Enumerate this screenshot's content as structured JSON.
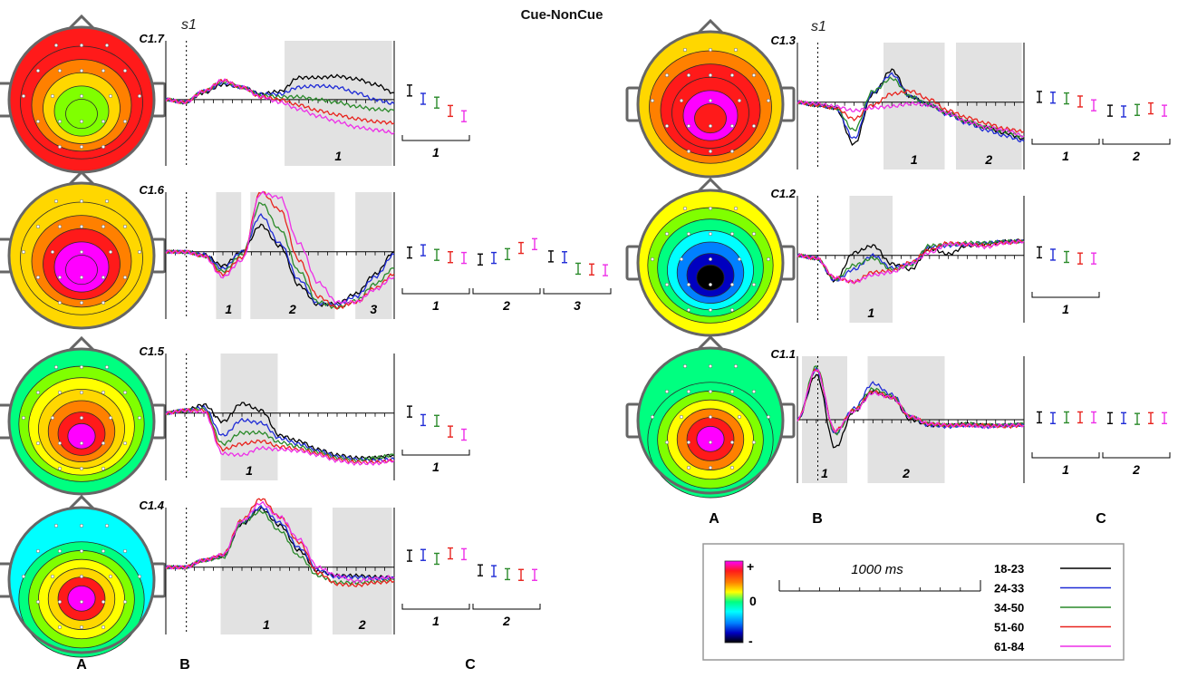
{
  "title": "Cue-NonCue",
  "time_marker": "s1",
  "column_letters": [
    "A",
    "B",
    "C"
  ],
  "legend": {
    "color_plus": "+",
    "color_zero": "0",
    "color_minus": "-",
    "scale_label": "1000 ms",
    "groups": [
      {
        "label": "18-23",
        "color": "#000000"
      },
      {
        "label": "24-33",
        "color": "#1f2bd6"
      },
      {
        "label": "34-50",
        "color": "#2a8a2a"
      },
      {
        "label": "51-60",
        "color": "#e8231e"
      },
      {
        "label": "61-84",
        "color": "#ee2ee8"
      }
    ]
  },
  "colormap": [
    "#ff00ff",
    "#ff1a1a",
    "#ff8000",
    "#ffd700",
    "#ffff00",
    "#80ff00",
    "#00ff80",
    "#00ffff",
    "#0080ff",
    "#0000c0",
    "#000000"
  ],
  "chart_data": [
    {
      "component": "C1.7",
      "type": "line",
      "topo": {
        "bands": [
          1,
          1,
          2,
          3,
          5,
          5
        ],
        "sensor_rows": [
          [
            30,
            0,
            30
          ],
          [
            40,
            10,
            40
          ],
          [
            40,
            40,
            30
          ],
          [
            30,
            40,
            40
          ]
        ]
      },
      "windows": [
        {
          "label": "1",
          "start": 0.52,
          "end": 0.99
        }
      ],
      "series": [
        {
          "name": "18-23",
          "values": [
            0,
            -0.1,
            0.25,
            0.55,
            0.45,
            0.2,
            0.3,
            0.8,
            0.8,
            0.85,
            0.75,
            0.55,
            0.25
          ]
        },
        {
          "name": "24-33",
          "values": [
            0,
            -0.1,
            0.3,
            0.6,
            0.45,
            0.2,
            0.2,
            0.45,
            0.5,
            0.45,
            0.25,
            0,
            -0.15
          ]
        },
        {
          "name": "34-50",
          "values": [
            0,
            -0.1,
            0.3,
            0.65,
            0.45,
            0.15,
            0.1,
            0.1,
            0,
            -0.1,
            -0.25,
            -0.35,
            -0.4
          ]
        },
        {
          "name": "51-60",
          "values": [
            0,
            -0.1,
            0.3,
            0.7,
            0.45,
            0.1,
            0,
            -0.2,
            -0.4,
            -0.55,
            -0.7,
            -0.8,
            -0.85
          ]
        },
        {
          "name": "61-84",
          "values": [
            0,
            -0.1,
            0.3,
            0.7,
            0.45,
            0.1,
            -0.1,
            -0.35,
            -0.6,
            -0.8,
            -1,
            -1.1,
            -1.2
          ]
        }
      ],
      "bars": [
        {
          "label": "1",
          "values": [
            0.6,
            0.05,
            -0.2,
            -0.75,
            -1.1
          ]
        }
      ]
    },
    {
      "component": "C1.6",
      "type": "line",
      "topo": {
        "bands": [
          3,
          3,
          2,
          1,
          0,
          0
        ],
        "sensor_rows": [
          [
            30,
            0,
            30
          ],
          [
            40,
            10,
            40
          ],
          [
            40,
            40,
            30
          ],
          [
            30,
            40,
            40
          ]
        ]
      },
      "windows": [
        {
          "label": "1",
          "start": 0.22,
          "end": 0.33
        },
        {
          "label": "2",
          "start": 0.37,
          "end": 0.74
        },
        {
          "label": "3",
          "start": 0.83,
          "end": 0.99
        }
      ],
      "series": [
        {
          "name": "18-23",
          "values": [
            0,
            0,
            -0.1,
            -0.5,
            0,
            0.95,
            0.2,
            -1.2,
            -1.9,
            -1.85,
            -1.5,
            -0.8,
            0
          ]
        },
        {
          "name": "24-33",
          "values": [
            0,
            0,
            -0.1,
            -0.6,
            0,
            1.3,
            0.3,
            -1,
            -1.85,
            -1.9,
            -1.6,
            -0.9,
            -0.1
          ]
        },
        {
          "name": "34-50",
          "values": [
            0,
            0,
            -0.15,
            -0.7,
            -0.1,
            1.75,
            0.8,
            -0.7,
            -1.8,
            -2,
            -1.75,
            -1.15,
            -0.6
          ]
        },
        {
          "name": "51-60",
          "values": [
            0,
            0,
            -0.15,
            -0.8,
            -0.2,
            2.15,
            1.5,
            -0.3,
            -1.6,
            -2,
            -1.8,
            -1.3,
            -0.8
          ]
        },
        {
          "name": "61-84",
          "values": [
            0,
            0,
            -0.15,
            -0.9,
            -0.3,
            2.1,
            1.95,
            0.3,
            -1.1,
            -1.8,
            -1.8,
            -1.35,
            -0.9
          ]
        }
      ],
      "bars": [
        {
          "label": "1",
          "values": [
            -0.05,
            0.1,
            -0.2,
            -0.35,
            -0.4
          ]
        },
        {
          "label": "2",
          "values": [
            -0.5,
            -0.4,
            -0.15,
            0.25,
            0.5
          ]
        },
        {
          "label": "3",
          "values": [
            -0.3,
            -0.35,
            -1.1,
            -1.15,
            -1.2
          ]
        }
      ]
    },
    {
      "component": "C1.5",
      "type": "line",
      "topo": {
        "bands": [
          6,
          5,
          4,
          3,
          2,
          1,
          0
        ],
        "sensor_rows": [
          [
            30,
            0,
            30
          ],
          [
            40,
            10,
            40
          ],
          [
            40,
            40,
            30
          ],
          [
            30,
            40,
            40
          ]
        ]
      },
      "windows": [
        {
          "label": "1",
          "start": 0.24,
          "end": 0.49
        }
      ],
      "series": [
        {
          "name": "18-23",
          "values": [
            0,
            0.1,
            0.3,
            -0.3,
            0.35,
            0.1,
            -0.8,
            -1,
            -1.3,
            -1.5,
            -1.6,
            -1.6,
            -1.5
          ]
        },
        {
          "name": "24-33",
          "values": [
            0,
            0.1,
            0.2,
            -0.8,
            -0.25,
            -0.35,
            -0.9,
            -1.1,
            -1.35,
            -1.55,
            -1.65,
            -1.7,
            -1.65
          ]
        },
        {
          "name": "34-50",
          "values": [
            0,
            0.1,
            0.15,
            -1.1,
            -0.7,
            -0.7,
            -1.05,
            -1.2,
            -1.4,
            -1.6,
            -1.7,
            -1.6,
            -1.5
          ]
        },
        {
          "name": "51-60",
          "values": [
            0,
            0.1,
            0.1,
            -1.3,
            -1.1,
            -1,
            -1.2,
            -1.3,
            -1.45,
            -1.65,
            -1.75,
            -1.75,
            -1.7
          ]
        },
        {
          "name": "61-84",
          "values": [
            0,
            0.1,
            0.05,
            -1.45,
            -1.5,
            -1.25,
            -1.3,
            -1.35,
            -1.5,
            -1.7,
            -1.8,
            -1.8,
            -1.7
          ]
        }
      ],
      "bars": [
        {
          "label": "1",
          "values": [
            0.1,
            -0.45,
            -0.5,
            -1.2,
            -1.4
          ]
        }
      ]
    },
    {
      "component": "C1.4",
      "type": "line",
      "topo": {
        "bands": [
          7,
          6,
          5,
          4,
          3,
          1,
          0
        ],
        "sensor_rows": [
          [
            30,
            0,
            30
          ],
          [
            40,
            10,
            40
          ],
          [
            40,
            40,
            30
          ],
          [
            30,
            40,
            40
          ]
        ]
      },
      "windows": [
        {
          "label": "1",
          "start": 0.24,
          "end": 0.64
        },
        {
          "label": "2",
          "start": 0.73,
          "end": 0.99
        }
      ],
      "series": [
        {
          "name": "18-23",
          "values": [
            0,
            0,
            0.25,
            0.4,
            1.55,
            2.1,
            1.5,
            0.6,
            -0.15,
            -0.3,
            -0.3,
            -0.35,
            -0.35
          ]
        },
        {
          "name": "24-33",
          "values": [
            0,
            0,
            0.25,
            0.4,
            1.6,
            2.15,
            1.6,
            0.7,
            -0.1,
            -0.35,
            -0.35,
            -0.4,
            -0.4
          ]
        },
        {
          "name": "34-50",
          "values": [
            0,
            0,
            0.25,
            0.35,
            1.6,
            2,
            1.3,
            0.4,
            -0.3,
            -0.55,
            -0.55,
            -0.5,
            -0.45
          ]
        },
        {
          "name": "51-60",
          "values": [
            0,
            0,
            0.25,
            0.45,
            1.7,
            2.45,
            1.8,
            0.9,
            -0.2,
            -0.6,
            -0.65,
            -0.55,
            -0.5
          ]
        },
        {
          "name": "61-84",
          "values": [
            0,
            0,
            0.25,
            0.45,
            1.65,
            2.3,
            1.8,
            1,
            0,
            -0.3,
            -0.5,
            -0.4,
            -0.35
          ]
        }
      ],
      "bars": [
        {
          "label": "1",
          "values": [
            0.75,
            0.8,
            0.55,
            0.9,
            0.85
          ]
        },
        {
          "label": "2",
          "values": [
            -0.2,
            -0.25,
            -0.45,
            -0.5,
            -0.5
          ]
        }
      ]
    },
    {
      "component": "C1.3",
      "type": "line",
      "topo": {
        "bands": [
          3,
          2,
          1,
          1,
          0,
          1
        ],
        "sensor_rows": [
          [
            30,
            0,
            30
          ],
          [
            40,
            10,
            40
          ],
          [
            40,
            40,
            30
          ],
          [
            30,
            40,
            40
          ]
        ]
      },
      "windows": [
        {
          "label": "1",
          "start": 0.38,
          "end": 0.65
        },
        {
          "label": "2",
          "start": 0.7,
          "end": 0.99
        }
      ],
      "series": [
        {
          "name": "18-23",
          "values": [
            0,
            -0.1,
            -0.2,
            -1.5,
            0.3,
            1.15,
            0.2,
            -0.1,
            -0.4,
            -0.7,
            -0.9,
            -1.1,
            -1.3
          ]
        },
        {
          "name": "24-33",
          "values": [
            0,
            -0.1,
            -0.2,
            -1.3,
            0.35,
            1,
            0.2,
            -0.1,
            -0.45,
            -0.75,
            -1,
            -1.2,
            -1.4
          ]
        },
        {
          "name": "34-50",
          "values": [
            0,
            -0.1,
            -0.2,
            -1,
            0.4,
            0.85,
            0.2,
            -0.1,
            -0.4,
            -0.7,
            -0.9,
            -1.05,
            -1.25
          ]
        },
        {
          "name": "51-60",
          "values": [
            0,
            -0.1,
            -0.2,
            -0.6,
            -0.1,
            0.3,
            0.4,
            0.1,
            -0.3,
            -0.55,
            -0.75,
            -0.95,
            -1.05
          ]
        },
        {
          "name": "61-84",
          "values": [
            0,
            -0.05,
            -0.15,
            -0.3,
            -0.2,
            -0.15,
            -0.05,
            -0.1,
            -0.4,
            -0.7,
            -0.9,
            -1,
            -1.2
          ]
        }
      ],
      "bars": [
        {
          "label": "1",
          "values": [
            0.35,
            0.3,
            0.25,
            0.05,
            -0.2
          ]
        },
        {
          "label": "2",
          "values": [
            -0.55,
            -0.6,
            -0.5,
            -0.4,
            -0.55
          ]
        }
      ]
    },
    {
      "component": "C1.2",
      "type": "line",
      "topo": {
        "bands": [
          4,
          5,
          6,
          7,
          8,
          9,
          10
        ],
        "sensor_rows": [
          [
            30,
            0,
            30
          ],
          [
            40,
            10,
            40
          ],
          [
            40,
            40,
            30
          ],
          [
            30,
            40,
            40
          ]
        ]
      },
      "windows": [
        {
          "label": "1",
          "start": 0.23,
          "end": 0.42
        }
      ],
      "series": [
        {
          "name": "18-23",
          "values": [
            0,
            -0.1,
            -0.9,
            0.1,
            0.35,
            -0.3,
            -0.5,
            0.25,
            0.05,
            0.35,
            0.4,
            0.5,
            0.55
          ]
        },
        {
          "name": "24-33",
          "values": [
            0,
            -0.1,
            -0.9,
            -0.5,
            0,
            -0.45,
            -0.3,
            0.3,
            0.35,
            0.4,
            0.45,
            0.5,
            0.5
          ]
        },
        {
          "name": "34-50",
          "values": [
            0,
            -0.1,
            -0.85,
            -0.35,
            -0.1,
            -0.5,
            -0.35,
            0.35,
            0.4,
            0.45,
            0.45,
            0.5,
            0.5
          ]
        },
        {
          "name": "51-60",
          "values": [
            0,
            -0.1,
            -0.8,
            -0.95,
            -0.6,
            -0.55,
            -0.25,
            0.2,
            0.45,
            0.4,
            0.35,
            0.45,
            0.5
          ]
        },
        {
          "name": "61-84",
          "values": [
            0,
            -0.1,
            -0.8,
            -0.95,
            -0.7,
            -0.6,
            -0.3,
            0.1,
            0.4,
            0.4,
            0.3,
            0.45,
            0.5
          ]
        }
      ],
      "bars": [
        {
          "label": "1",
          "values": [
            0.2,
            0.05,
            -0.1,
            -0.2,
            -0.2
          ]
        }
      ]
    },
    {
      "component": "C1.1",
      "type": "line",
      "topo": {
        "bands": [
          6,
          6,
          5,
          4,
          2,
          1,
          0
        ],
        "sensor_rows": [
          [
            30,
            0,
            30
          ],
          [
            40,
            10,
            40
          ],
          [
            40,
            40,
            30
          ],
          [
            30,
            40,
            40
          ]
        ]
      },
      "windows": [
        {
          "label": "1",
          "start": 0.02,
          "end": 0.22
        },
        {
          "label": "2",
          "start": 0.31,
          "end": 0.65
        }
      ],
      "series": [
        {
          "name": "18-23",
          "values": [
            0,
            1.6,
            -1,
            0.3,
            1,
            0.8,
            0,
            -0.2,
            -0.2,
            -0.15,
            -0.2,
            -0.2,
            -0.15
          ]
        },
        {
          "name": "24-33",
          "values": [
            0,
            1.8,
            -0.5,
            0.4,
            1.3,
            0.9,
            0.1,
            -0.2,
            -0.25,
            -0.2,
            -0.25,
            -0.2,
            -0.2
          ]
        },
        {
          "name": "34-50",
          "values": [
            0,
            1.9,
            -0.5,
            0.35,
            1.1,
            0.85,
            0.1,
            -0.15,
            -0.2,
            -0.15,
            -0.2,
            -0.2,
            -0.15
          ]
        },
        {
          "name": "51-60",
          "values": [
            0,
            1.8,
            -0.4,
            0.35,
            1,
            0.8,
            0.1,
            -0.15,
            -0.2,
            -0.2,
            -0.2,
            -0.25,
            -0.2
          ]
        },
        {
          "name": "61-84",
          "values": [
            0,
            1.8,
            -0.4,
            0.3,
            0.95,
            0.8,
            0.1,
            -0.15,
            -0.2,
            -0.2,
            -0.25,
            -0.2,
            -0.2
          ]
        }
      ],
      "bars": [
        {
          "label": "1",
          "values": [
            0.15,
            0.1,
            0.15,
            0.15,
            0.15
          ]
        },
        {
          "label": "2",
          "values": [
            0.1,
            0.1,
            0.05,
            0.1,
            0.1
          ]
        }
      ]
    }
  ]
}
